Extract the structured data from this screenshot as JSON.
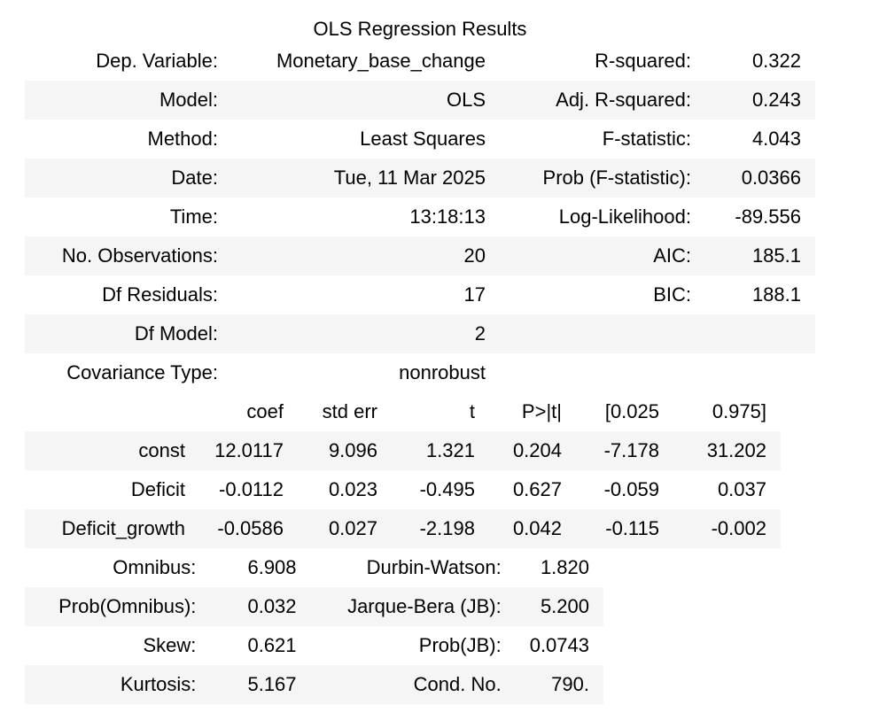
{
  "title": "OLS Regression Results",
  "summary_rows": [
    {
      "label": "Dep. Variable:",
      "value": "Monetary_base_change",
      "label2": "R-squared:",
      "value2": "0.322"
    },
    {
      "label": "Model:",
      "value": "OLS",
      "label2": "Adj. R-squared:",
      "value2": "0.243"
    },
    {
      "label": "Method:",
      "value": "Least Squares",
      "label2": "F-statistic:",
      "value2": "4.043"
    },
    {
      "label": "Date:",
      "value": "Tue, 11 Mar 2025",
      "label2": "Prob (F-statistic):",
      "value2": "0.0366"
    },
    {
      "label": "Time:",
      "value": "13:18:13",
      "label2": "Log-Likelihood:",
      "value2": "-89.556"
    },
    {
      "label": "No. Observations:",
      "value": "20",
      "label2": "AIC:",
      "value2": "185.1"
    },
    {
      "label": "Df Residuals:",
      "value": "17",
      "label2": "BIC:",
      "value2": "188.1"
    },
    {
      "label": "Df Model:",
      "value": "2",
      "label2": "",
      "value2": ""
    },
    {
      "label": "Covariance Type:",
      "value": "nonrobust",
      "label2": "",
      "value2": ""
    }
  ],
  "coef_headers": [
    "",
    "coef",
    "std err",
    "t",
    "P>|t|",
    "[0.025",
    "0.975]"
  ],
  "coef_rows": [
    [
      "const",
      "12.0117",
      "9.096",
      "1.321",
      "0.204",
      "-7.178",
      "31.202"
    ],
    [
      "Deficit",
      "-0.0112",
      "0.023",
      "-0.495",
      "0.627",
      "-0.059",
      "0.037"
    ],
    [
      "Deficit_growth",
      "-0.0586",
      "0.027",
      "-2.198",
      "0.042",
      "-0.115",
      "-0.002"
    ]
  ],
  "diag_rows": [
    [
      "Omnibus:",
      "6.908",
      "Durbin-Watson:",
      "1.820"
    ],
    [
      "Prob(Omnibus):",
      "0.032",
      "Jarque-Bera (JB):",
      "5.200"
    ],
    [
      "Skew:",
      "0.621",
      "Prob(JB):",
      "0.0743"
    ],
    [
      "Kurtosis:",
      "5.167",
      "Cond. No.",
      "790."
    ]
  ],
  "colors": {
    "text": "#000000",
    "row_shade": "#f5f5f5",
    "background": "#ffffff"
  }
}
